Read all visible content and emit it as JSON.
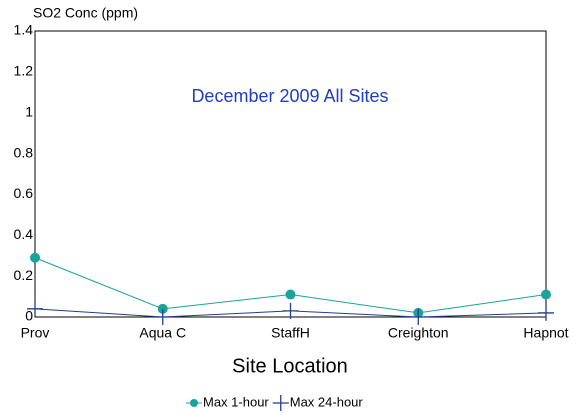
{
  "chart_data": {
    "type": "line",
    "title": "December 2009 All Sites",
    "y_label": "SO2 Conc (ppm)",
    "x_label": "Site Location",
    "categories": [
      "Prov",
      "Aqua C",
      "StaffH",
      "Creighton",
      "Hapnot"
    ],
    "series": [
      {
        "name": "Max 1-hour",
        "color": "#1aa39a",
        "marker": "circle",
        "values": [
          0.29,
          0.04,
          0.11,
          0.02,
          0.11
        ]
      },
      {
        "name": "Max 24-hour",
        "color": "#1f3f8f",
        "marker": "plus",
        "values": [
          0.04,
          0.0,
          0.03,
          0.0,
          0.02
        ]
      }
    ],
    "ylim": [
      0,
      1.4
    ],
    "yticks": [
      0,
      0.2,
      0.4,
      0.6,
      0.8,
      1,
      1.2,
      1.4
    ],
    "grid": false,
    "legend": "bottom"
  }
}
